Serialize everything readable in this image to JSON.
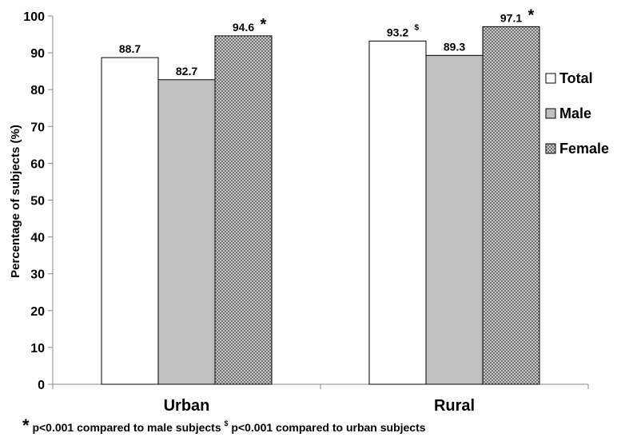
{
  "chart_data": {
    "type": "bar",
    "categories": [
      "Urban",
      "Rural"
    ],
    "series": [
      {
        "name": "Total",
        "values": [
          88.7,
          93.2
        ],
        "color": "#ffffff",
        "pattern": "none"
      },
      {
        "name": "Male",
        "values": [
          82.7,
          89.3
        ],
        "color": "#c0c0c0",
        "pattern": "none"
      },
      {
        "name": "Female",
        "values": [
          94.6,
          97.1
        ],
        "color": "#d9d9d9",
        "pattern": "crosshatch"
      }
    ],
    "data_labels": [
      [
        "88.7",
        "93.2"
      ],
      [
        "82.7",
        "89.3"
      ],
      [
        "94.6",
        "97.1"
      ]
    ],
    "markers": [
      [
        "",
        "$"
      ],
      [
        "",
        ""
      ],
      [
        "*",
        "*"
      ]
    ],
    "ylabel": "Percentage of subjects (%)",
    "xlabel": "",
    "ylim": [
      0,
      100
    ],
    "yticks": [
      "0",
      "10",
      "20",
      "30",
      "40",
      "50",
      "60",
      "70",
      "80",
      "90",
      "100"
    ],
    "legend_position": "right",
    "grid": false,
    "footnote": {
      "star": "*",
      "text1": " p<0.001 compared to male subjects ",
      "dollar": "$",
      "text2": " p<0.001 compared to urban subjects"
    }
  }
}
